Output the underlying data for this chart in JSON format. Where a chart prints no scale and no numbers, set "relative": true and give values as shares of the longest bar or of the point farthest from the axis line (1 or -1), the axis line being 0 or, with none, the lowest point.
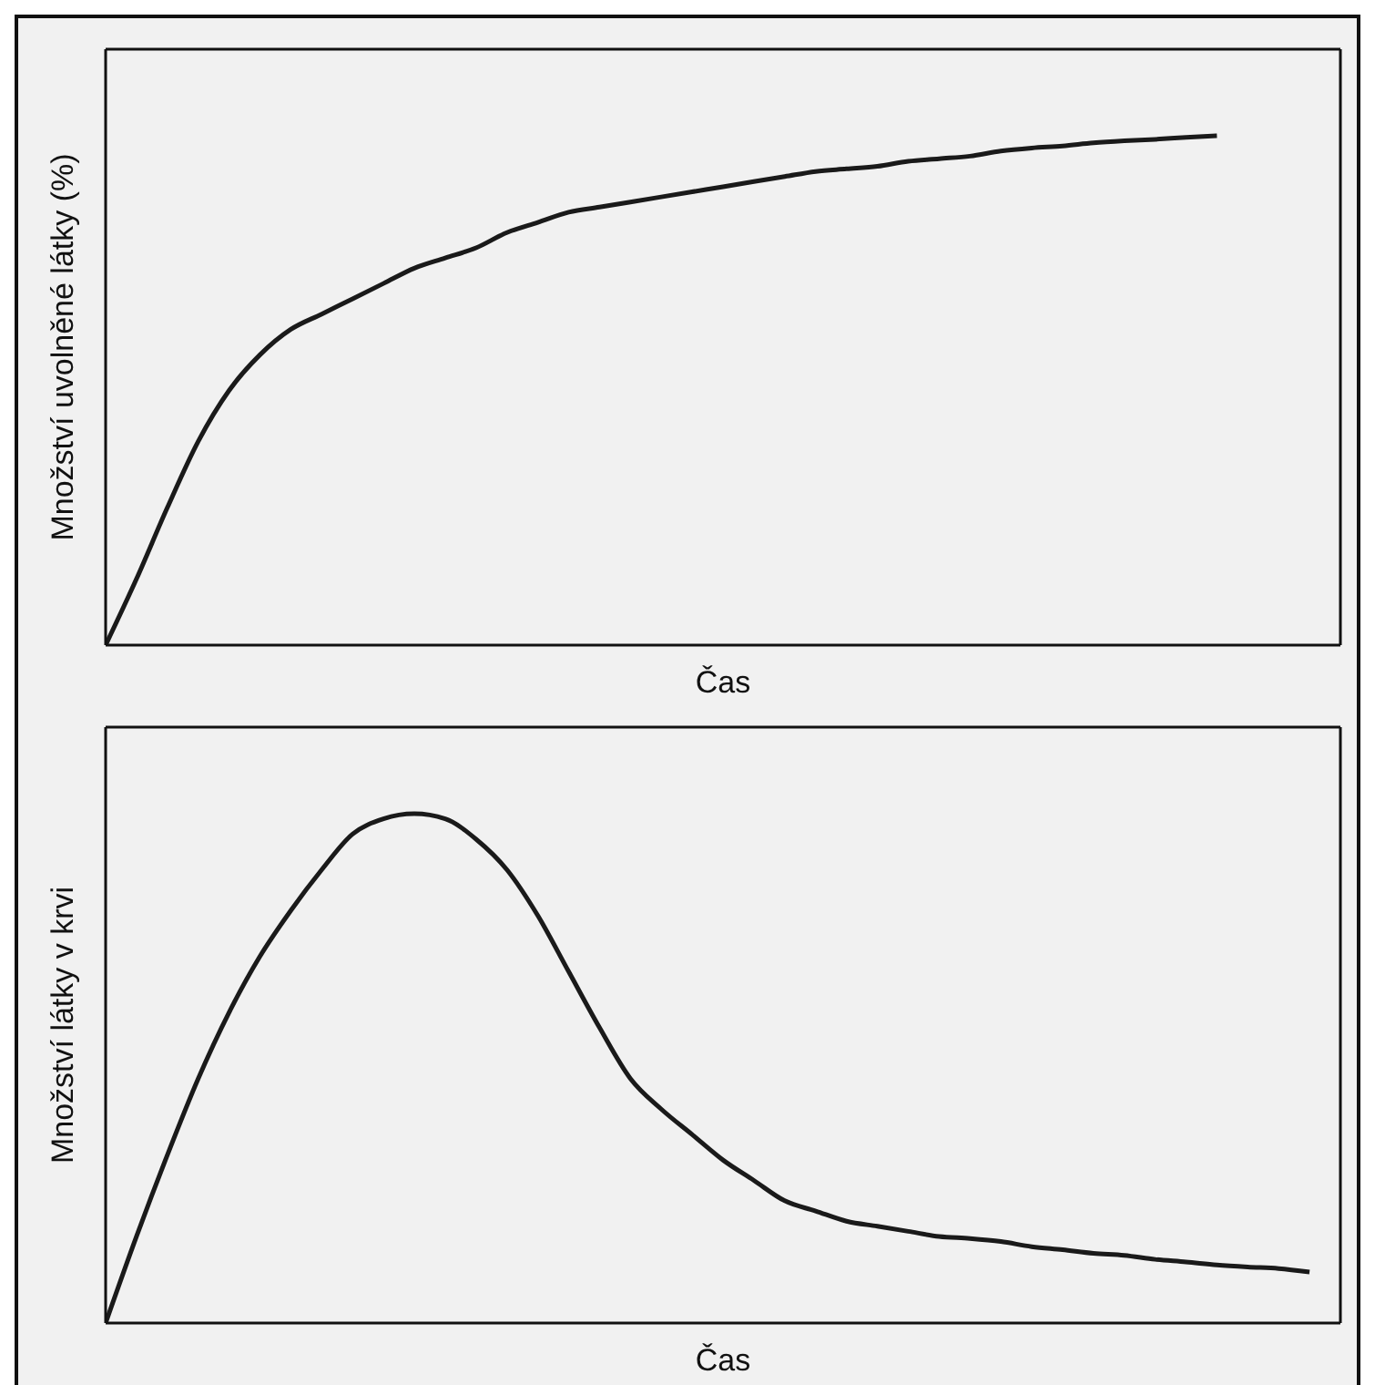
{
  "chart_data": [
    {
      "type": "line",
      "relative": true,
      "xlabel": "Čas",
      "ylabel": "Množství uvolněné látky (%)",
      "color": "#1a1a1a",
      "categories": [
        null,
        null,
        null,
        null,
        null,
        null,
        null,
        null,
        null,
        null,
        null,
        null,
        null,
        null,
        null,
        null,
        null,
        null,
        null,
        null,
        null,
        null,
        null,
        null,
        null,
        null,
        null,
        null,
        null,
        null,
        null,
        null,
        null,
        null,
        null,
        null,
        null,
        null,
        null,
        null,
        null
      ],
      "values": [
        0,
        0.13,
        0.27,
        0.4,
        0.5,
        0.57,
        0.62,
        0.65,
        0.68,
        0.71,
        0.74,
        0.76,
        0.78,
        0.81,
        0.83,
        0.85,
        0.86,
        0.87,
        0.88,
        0.89,
        0.9,
        0.91,
        0.92,
        0.93,
        0.935,
        0.94,
        0.95,
        0.955,
        0.96,
        0.97,
        0.976,
        0.98,
        0.986,
        0.99,
        0.993,
        0.997,
        1,
        null,
        null,
        null,
        null
      ]
    },
    {
      "type": "line",
      "relative": true,
      "xlabel": "Čas",
      "ylabel": "Množství látky v krvi",
      "color": "#1a1a1a",
      "categories": [
        null,
        null,
        null,
        null,
        null,
        null,
        null,
        null,
        null,
        null,
        null,
        null,
        null,
        null,
        null,
        null,
        null,
        null,
        null,
        null,
        null,
        null,
        null,
        null,
        null,
        null,
        null,
        null,
        null,
        null,
        null,
        null,
        null,
        null,
        null,
        null,
        null,
        null,
        null,
        null,
        null
      ],
      "values": [
        0,
        0.17,
        0.33,
        0.48,
        0.61,
        0.72,
        0.81,
        0.89,
        0.96,
        0.99,
        1,
        0.99,
        0.95,
        0.89,
        0.8,
        0.69,
        0.58,
        0.48,
        0.42,
        0.37,
        0.32,
        0.28,
        0.24,
        0.22,
        0.2,
        0.19,
        0.18,
        0.17,
        0.166,
        0.16,
        0.15,
        0.144,
        0.137,
        0.133,
        0.125,
        0.12,
        0.114,
        0.11,
        0.107,
        0.1,
        null
      ]
    }
  ]
}
